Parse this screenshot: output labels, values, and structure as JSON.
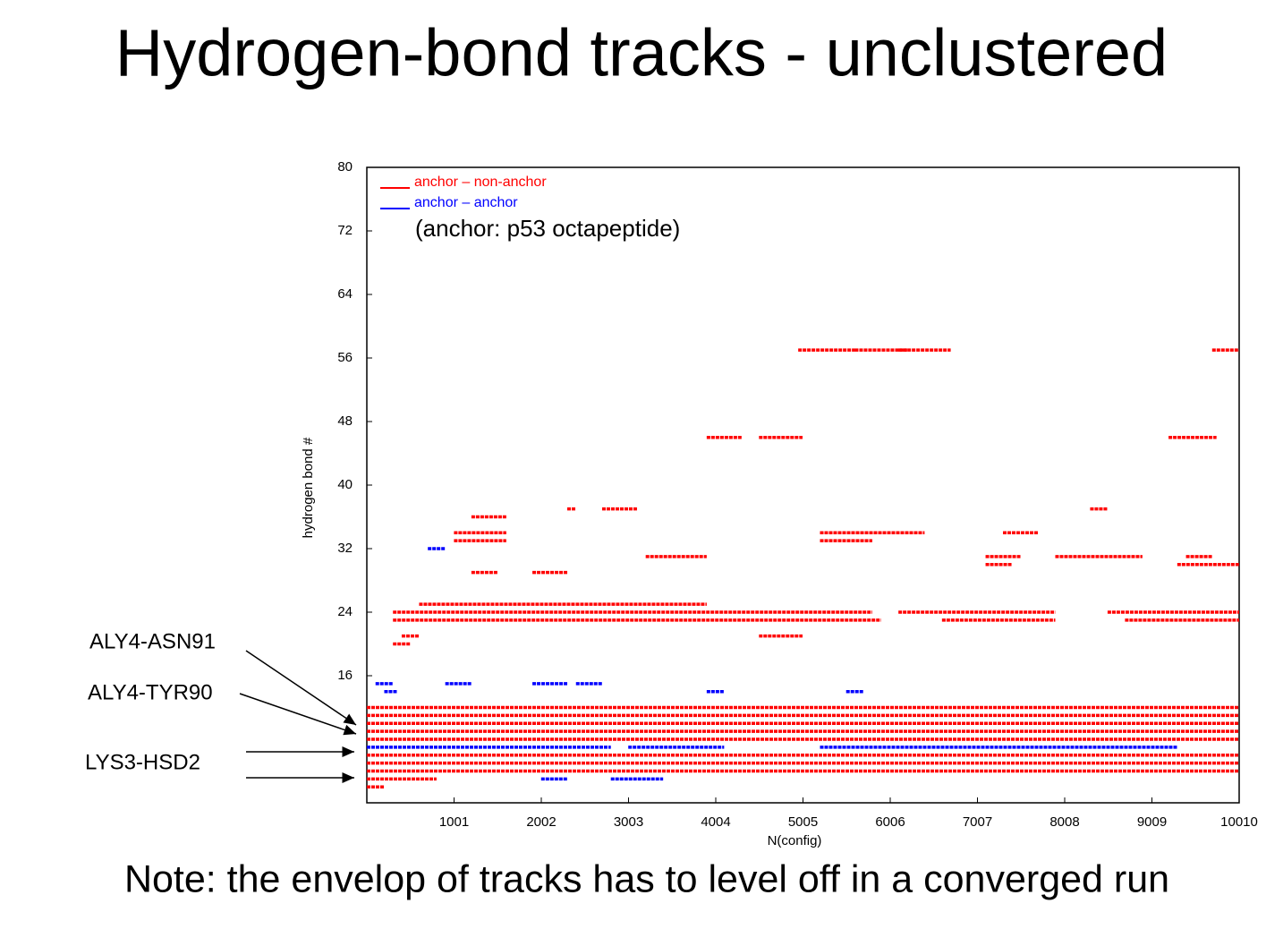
{
  "chart_data": {
    "type": "track",
    "title": "Hydrogen-bond tracks - unclustered",
    "note": "Note: the envelop of tracks has to level off in a converged run",
    "x_label": "N(config)",
    "y_label": "hydrogen bond #",
    "legend_note": "(anchor: p53 octapeptide)",
    "annotations": [
      "ALY4-ASN91",
      "ALY4-TYR90",
      "LYS3-HSD2"
    ],
    "xlim": [
      0,
      10010
    ],
    "xticks": [
      1001,
      2002,
      3003,
      4004,
      5005,
      6006,
      7007,
      8008,
      9009,
      10010
    ],
    "ylim": [
      0,
      80
    ],
    "yticks": [
      16,
      24,
      32,
      40,
      48,
      56,
      64,
      72,
      80
    ],
    "series": [
      {
        "name": "anchor – non-anchor",
        "color": "#ff0000",
        "values": [
          12,
          11,
          10,
          9,
          8,
          6,
          5,
          4,
          2,
          3,
          25,
          24,
          24,
          24,
          23,
          23,
          23,
          21,
          21,
          20,
          57,
          57,
          57,
          57,
          46,
          46,
          46,
          34,
          34,
          34,
          33,
          33,
          29,
          29,
          31,
          31,
          31,
          31,
          30,
          30,
          37,
          37,
          37,
          36
        ],
        "x_start": [
          0,
          0,
          0,
          0,
          0,
          0,
          0,
          0,
          0,
          0,
          600,
          300,
          6100,
          8500,
          300,
          6600,
          8700,
          400,
          4500,
          300,
          4950,
          5600,
          6100,
          9700,
          3900,
          4500,
          9200,
          1000,
          5200,
          7300,
          1000,
          5200,
          1200,
          1900,
          3200,
          7100,
          7900,
          9400,
          7100,
          9300,
          2300,
          2700,
          8300,
          1200
        ],
        "x_end": [
          10010,
          10010,
          10010,
          10010,
          10010,
          10010,
          10010,
          10010,
          200,
          800,
          3900,
          5800,
          7900,
          10010,
          5900,
          7900,
          10010,
          600,
          5000,
          500,
          5600,
          6200,
          6700,
          10010,
          4300,
          5000,
          9750,
          1600,
          6400,
          7700,
          1600,
          5800,
          1500,
          2300,
          3900,
          7500,
          8900,
          9700,
          7400,
          10010,
          2400,
          3100,
          8500,
          1600
        ]
      },
      {
        "name": "anchor – anchor",
        "color": "#0000ff",
        "values": [
          7,
          7,
          7,
          15,
          15,
          15,
          15,
          14,
          14,
          14,
          32,
          3,
          3
        ],
        "x_start": [
          0,
          3000,
          5200,
          100,
          900,
          1900,
          2400,
          200,
          3900,
          5500,
          700,
          2000,
          2800
        ],
        "x_end": [
          2800,
          4100,
          9300,
          300,
          1200,
          2300,
          2700,
          350,
          4100,
          5700,
          900,
          2300,
          3400
        ]
      }
    ]
  }
}
